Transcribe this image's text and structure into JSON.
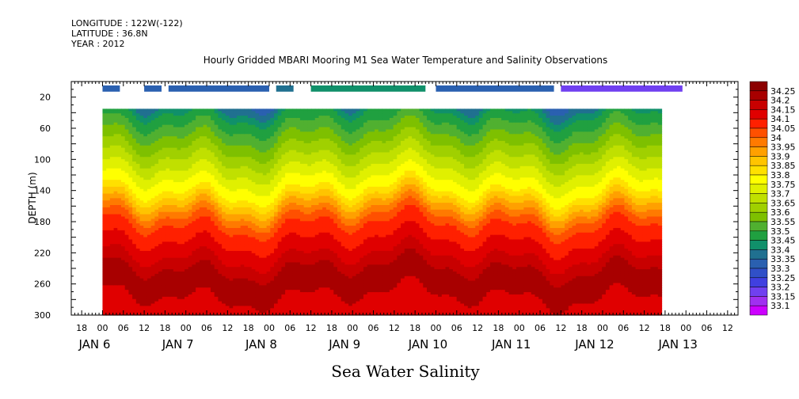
{
  "header": {
    "longitude": "LONGITUDE : 122W(-122)",
    "latitude": "LATITUDE : 36.8N",
    "year": "YEAR : 2012"
  },
  "chart_data": {
    "type": "heatmap",
    "title": "Hourly Gridded MBARI Mooring M1 Sea Water Temperature and Salinity Observations",
    "xlabel": "Sea Water Salinity",
    "ylabel": "DEPTH (m)",
    "ylim": [
      300,
      0
    ],
    "xlim_hours_labels": "JAN 5 15:00 to JAN 13 15:00",
    "y_ticks": [
      "20",
      "60",
      "100",
      "140",
      "180",
      "220",
      "260",
      "300"
    ],
    "hour_ticks": [
      "18",
      "00",
      "06",
      "12",
      "18",
      "00",
      "06",
      "12",
      "18",
      "00",
      "06",
      "12",
      "18",
      "00",
      "06",
      "12",
      "18",
      "00",
      "06",
      "12",
      "18",
      "00",
      "06",
      "12",
      "18",
      "00",
      "06",
      "12",
      "18",
      "00",
      "06",
      "12"
    ],
    "day_labels": [
      "JAN  6",
      "JAN  7",
      "JAN  8",
      "JAN  9",
      "JAN 10",
      "JAN 11",
      "JAN 12",
      "JAN 13"
    ],
    "colorbar": {
      "levels": [
        "34.25",
        "34.2",
        "34.15",
        "34.1",
        "34.05",
        "34",
        "33.95",
        "33.9",
        "33.85",
        "33.8",
        "33.75",
        "33.7",
        "33.65",
        "33.6",
        "33.55",
        "33.5",
        "33.45",
        "33.4",
        "33.35",
        "33.3",
        "33.25",
        "33.2",
        "33.15",
        "33.1"
      ],
      "colors": [
        "#8b0000",
        "#a80000",
        "#c80000",
        "#e00000",
        "#ff2000",
        "#ff5000",
        "#ff7a00",
        "#ffa000",
        "#ffc400",
        "#ffe000",
        "#ffff00",
        "#e0f000",
        "#c0e000",
        "#a0d000",
        "#7ec000",
        "#50b030",
        "#20a040",
        "#10906a",
        "#207090",
        "#2a60b0",
        "#3050c8",
        "#4040e0",
        "#7040f0",
        "#a030f0",
        "#cc00ff"
      ]
    },
    "surface_band": {
      "depth_range": [
        5,
        13
      ],
      "segments": [
        {
          "start": "JAN 6 00",
          "end": "JAN 6 05",
          "value": 33.3
        },
        {
          "start": "JAN 6 12",
          "end": "JAN 6 17",
          "value": 33.3
        },
        {
          "start": "JAN 6 19",
          "end": "JAN 8 00",
          "value": 33.3
        },
        {
          "start": "JAN 8 02",
          "end": "JAN 8 07",
          "value": 33.35
        },
        {
          "start": "JAN 8 12",
          "end": "JAN 9 21",
          "value": 33.4
        },
        {
          "start": "JAN 10 00",
          "end": "JAN 11 10",
          "value": 33.3
        },
        {
          "start": "JAN 11 12",
          "end": "JAN 12 23",
          "value": 33.15
        }
      ]
    },
    "profile_data": {
      "depth_range": [
        35,
        300
      ],
      "time_range": "JAN 6 00 to JAN 12 17",
      "note": "Salinity increases with depth from about 33.4 near 35 m to about 34.25 near 250-260 m, then about 34.15 to 300 m."
    }
  }
}
